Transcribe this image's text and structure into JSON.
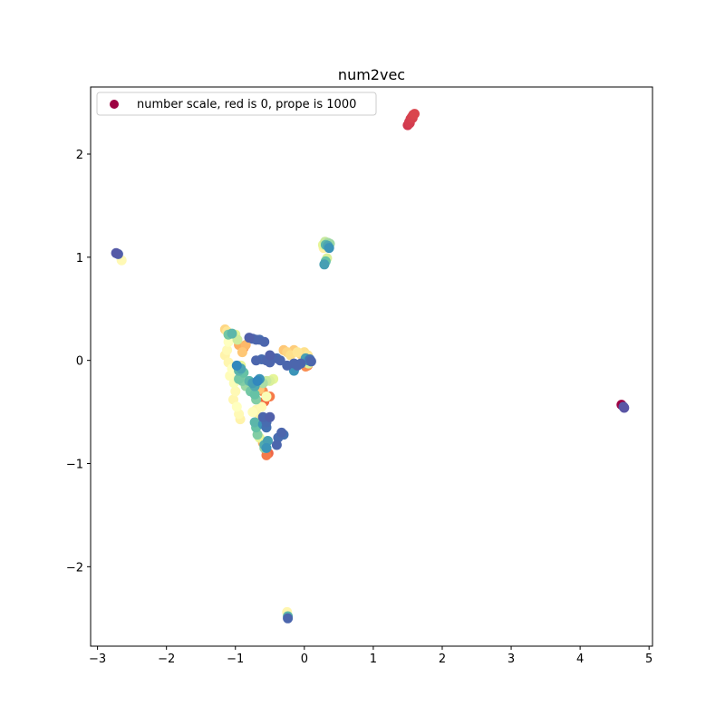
{
  "chart_data": {
    "type": "scatter",
    "title": "num2vec",
    "xlabel": "",
    "ylabel": "",
    "xlim": [
      -3.1,
      5.05
    ],
    "ylim": [
      -2.77,
      2.65
    ],
    "x_ticks": [
      -3,
      -2,
      -1,
      0,
      1,
      2,
      3,
      4,
      5
    ],
    "y_ticks": [
      -2,
      -1,
      0,
      1,
      2
    ],
    "grid": false,
    "legend": {
      "placement": "upper-left",
      "label": "number scale, red is 0, prope is 1000",
      "marker_color": "#9e0142"
    },
    "color_scale": {
      "name": "Spectral",
      "min": 0,
      "max": 1000
    },
    "points": [
      {
        "x": 1.5,
        "y": 2.28,
        "v": 90
      },
      {
        "x": 1.52,
        "y": 2.31,
        "v": 95
      },
      {
        "x": 1.54,
        "y": 2.34,
        "v": 100
      },
      {
        "x": 1.56,
        "y": 2.36,
        "v": 105
      },
      {
        "x": 1.58,
        "y": 2.38,
        "v": 110
      },
      {
        "x": 1.6,
        "y": 2.39,
        "v": 115
      },
      {
        "x": 1.53,
        "y": 2.3,
        "v": 98
      },
      {
        "x": 1.57,
        "y": 2.35,
        "v": 108
      },
      {
        "x": -2.73,
        "y": 1.04,
        "v": 980
      },
      {
        "x": -2.7,
        "y": 1.03,
        "v": 970
      },
      {
        "x": -2.65,
        "y": 0.97,
        "v": 480
      },
      {
        "x": 0.27,
        "y": 1.12,
        "v": 600
      },
      {
        "x": 0.3,
        "y": 1.15,
        "v": 650
      },
      {
        "x": 0.34,
        "y": 1.14,
        "v": 700
      },
      {
        "x": 0.37,
        "y": 1.13,
        "v": 720
      },
      {
        "x": 0.28,
        "y": 1.09,
        "v": 450
      },
      {
        "x": 0.31,
        "y": 1.12,
        "v": 820
      },
      {
        "x": 0.34,
        "y": 1.11,
        "v": 850
      },
      {
        "x": 0.36,
        "y": 1.09,
        "v": 880
      },
      {
        "x": 0.33,
        "y": 0.99,
        "v": 620
      },
      {
        "x": 0.31,
        "y": 0.96,
        "v": 800
      },
      {
        "x": 0.29,
        "y": 0.93,
        "v": 860
      },
      {
        "x": 4.6,
        "y": -0.43,
        "v": 0
      },
      {
        "x": 4.64,
        "y": -0.46,
        "v": 990
      },
      {
        "x": 4.63,
        "y": -0.45,
        "v": 980
      },
      {
        "x": -0.25,
        "y": -2.44,
        "v": 470
      },
      {
        "x": -0.24,
        "y": -2.48,
        "v": 820
      },
      {
        "x": -0.24,
        "y": -2.5,
        "v": 960
      },
      {
        "x": -1.15,
        "y": 0.3,
        "v": 380
      },
      {
        "x": -1.12,
        "y": 0.28,
        "v": 420
      },
      {
        "x": -1.1,
        "y": 0.25,
        "v": 780
      },
      {
        "x": -1.05,
        "y": 0.26,
        "v": 820
      },
      {
        "x": -1.0,
        "y": 0.25,
        "v": 600
      },
      {
        "x": -0.97,
        "y": 0.2,
        "v": 640
      },
      {
        "x": -0.95,
        "y": 0.15,
        "v": 300
      },
      {
        "x": -1.1,
        "y": 0.18,
        "v": 500
      },
      {
        "x": -1.12,
        "y": 0.1,
        "v": 480
      },
      {
        "x": -1.15,
        "y": 0.05,
        "v": 460
      },
      {
        "x": -1.1,
        "y": -0.02,
        "v": 470
      },
      {
        "x": -1.05,
        "y": -0.08,
        "v": 500
      },
      {
        "x": -1.08,
        "y": -0.15,
        "v": 490
      },
      {
        "x": -1.02,
        "y": -0.22,
        "v": 520
      },
      {
        "x": -1.0,
        "y": -0.3,
        "v": 480
      },
      {
        "x": -1.03,
        "y": -0.38,
        "v": 470
      },
      {
        "x": -0.98,
        "y": -0.45,
        "v": 500
      },
      {
        "x": -0.95,
        "y": -0.52,
        "v": 480
      },
      {
        "x": -0.93,
        "y": -0.57,
        "v": 460
      },
      {
        "x": -0.9,
        "y": 0.08,
        "v": 350
      },
      {
        "x": -0.88,
        "y": 0.12,
        "v": 250
      },
      {
        "x": -0.85,
        "y": 0.15,
        "v": 320
      },
      {
        "x": -0.92,
        "y": -0.05,
        "v": 600
      },
      {
        "x": -0.95,
        "y": -0.1,
        "v": 820
      },
      {
        "x": -0.92,
        "y": -0.08,
        "v": 850
      },
      {
        "x": -0.88,
        "y": -0.12,
        "v": 800
      },
      {
        "x": -0.98,
        "y": -0.05,
        "v": 900
      },
      {
        "x": -0.95,
        "y": -0.18,
        "v": 780
      },
      {
        "x": -0.9,
        "y": -0.2,
        "v": 760
      },
      {
        "x": -0.85,
        "y": -0.25,
        "v": 720
      },
      {
        "x": -0.8,
        "y": -0.2,
        "v": 820
      },
      {
        "x": -0.75,
        "y": -0.22,
        "v": 860
      },
      {
        "x": -0.72,
        "y": -0.25,
        "v": 840
      },
      {
        "x": -0.68,
        "y": -0.2,
        "v": 900
      },
      {
        "x": -0.65,
        "y": -0.18,
        "v": 880
      },
      {
        "x": -0.6,
        "y": -0.22,
        "v": 700
      },
      {
        "x": -0.55,
        "y": -0.2,
        "v": 650
      },
      {
        "x": -0.5,
        "y": -0.2,
        "v": 620
      },
      {
        "x": -0.45,
        "y": -0.18,
        "v": 600
      },
      {
        "x": -0.78,
        "y": -0.3,
        "v": 780
      },
      {
        "x": -0.72,
        "y": -0.33,
        "v": 800
      },
      {
        "x": -0.7,
        "y": -0.38,
        "v": 760
      },
      {
        "x": -0.65,
        "y": -0.28,
        "v": 350
      },
      {
        "x": -0.6,
        "y": -0.3,
        "v": 250
      },
      {
        "x": -0.55,
        "y": -0.35,
        "v": 520
      },
      {
        "x": -0.58,
        "y": -0.4,
        "v": 200
      },
      {
        "x": -0.5,
        "y": -0.35,
        "v": 220
      },
      {
        "x": -0.62,
        "y": -0.45,
        "v": 480
      },
      {
        "x": -0.7,
        "y": -0.48,
        "v": 470
      },
      {
        "x": -0.65,
        "y": -0.55,
        "v": 450
      },
      {
        "x": -0.75,
        "y": -0.5,
        "v": 490
      },
      {
        "x": -0.72,
        "y": -0.6,
        "v": 820
      },
      {
        "x": -0.7,
        "y": -0.65,
        "v": 800
      },
      {
        "x": -0.68,
        "y": -0.72,
        "v": 760
      },
      {
        "x": -0.6,
        "y": -0.55,
        "v": 960
      },
      {
        "x": -0.55,
        "y": -0.6,
        "v": 950
      },
      {
        "x": -0.55,
        "y": -0.65,
        "v": 940
      },
      {
        "x": -0.5,
        "y": -0.55,
        "v": 970
      },
      {
        "x": -0.6,
        "y": -0.62,
        "v": 880
      },
      {
        "x": -0.65,
        "y": -0.75,
        "v": 600
      },
      {
        "x": -0.6,
        "y": -0.8,
        "v": 300
      },
      {
        "x": -0.58,
        "y": -0.85,
        "v": 720
      },
      {
        "x": -0.55,
        "y": -0.88,
        "v": 200
      },
      {
        "x": -0.52,
        "y": -0.9,
        "v": 180
      },
      {
        "x": -0.55,
        "y": -0.92,
        "v": 220
      },
      {
        "x": -0.58,
        "y": -0.82,
        "v": 840
      },
      {
        "x": -0.53,
        "y": -0.78,
        "v": 860
      },
      {
        "x": -0.55,
        "y": -0.85,
        "v": 880
      },
      {
        "x": -0.4,
        "y": -0.82,
        "v": 960
      },
      {
        "x": -0.38,
        "y": -0.75,
        "v": 950
      },
      {
        "x": -0.33,
        "y": -0.7,
        "v": 960
      },
      {
        "x": -0.3,
        "y": -0.72,
        "v": 940
      },
      {
        "x": -0.8,
        "y": 0.22,
        "v": 970
      },
      {
        "x": -0.75,
        "y": 0.21,
        "v": 960
      },
      {
        "x": -0.7,
        "y": 0.2,
        "v": 960
      },
      {
        "x": -0.65,
        "y": 0.2,
        "v": 950
      },
      {
        "x": -0.58,
        "y": 0.18,
        "v": 960
      },
      {
        "x": -0.7,
        "y": 0.0,
        "v": 960
      },
      {
        "x": -0.62,
        "y": 0.01,
        "v": 950
      },
      {
        "x": -0.55,
        "y": 0.0,
        "v": 960
      },
      {
        "x": -0.5,
        "y": 0.05,
        "v": 970
      },
      {
        "x": -0.45,
        "y": 0.02,
        "v": 960
      },
      {
        "x": -0.5,
        "y": -0.02,
        "v": 960
      },
      {
        "x": -0.4,
        "y": 0.02,
        "v": 950
      },
      {
        "x": -0.35,
        "y": 0.0,
        "v": 960
      },
      {
        "x": -0.25,
        "y": -0.05,
        "v": 960
      },
      {
        "x": -0.15,
        "y": -0.03,
        "v": 960
      },
      {
        "x": -0.1,
        "y": -0.05,
        "v": 960
      },
      {
        "x": -0.05,
        "y": -0.03,
        "v": 960
      },
      {
        "x": -0.15,
        "y": -0.1,
        "v": 880
      },
      {
        "x": -0.3,
        "y": 0.1,
        "v": 350
      },
      {
        "x": -0.25,
        "y": 0.08,
        "v": 380
      },
      {
        "x": -0.2,
        "y": 0.05,
        "v": 400
      },
      {
        "x": -0.15,
        "y": 0.1,
        "v": 360
      },
      {
        "x": -0.1,
        "y": 0.08,
        "v": 420
      },
      {
        "x": -0.05,
        "y": 0.06,
        "v": 380
      },
      {
        "x": 0.0,
        "y": 0.08,
        "v": 400
      },
      {
        "x": 0.05,
        "y": 0.05,
        "v": 420
      },
      {
        "x": 0.0,
        "y": -0.02,
        "v": 300
      },
      {
        "x": 0.02,
        "y": -0.06,
        "v": 250
      },
      {
        "x": 0.05,
        "y": -0.05,
        "v": 250
      },
      {
        "x": 0.02,
        "y": 0.02,
        "v": 860
      },
      {
        "x": 0.06,
        "y": 0.0,
        "v": 880
      },
      {
        "x": 0.08,
        "y": 0.01,
        "v": 940
      },
      {
        "x": 0.1,
        "y": -0.01,
        "v": 960
      },
      {
        "x": 0.06,
        "y": -0.03,
        "v": 620
      }
    ]
  }
}
